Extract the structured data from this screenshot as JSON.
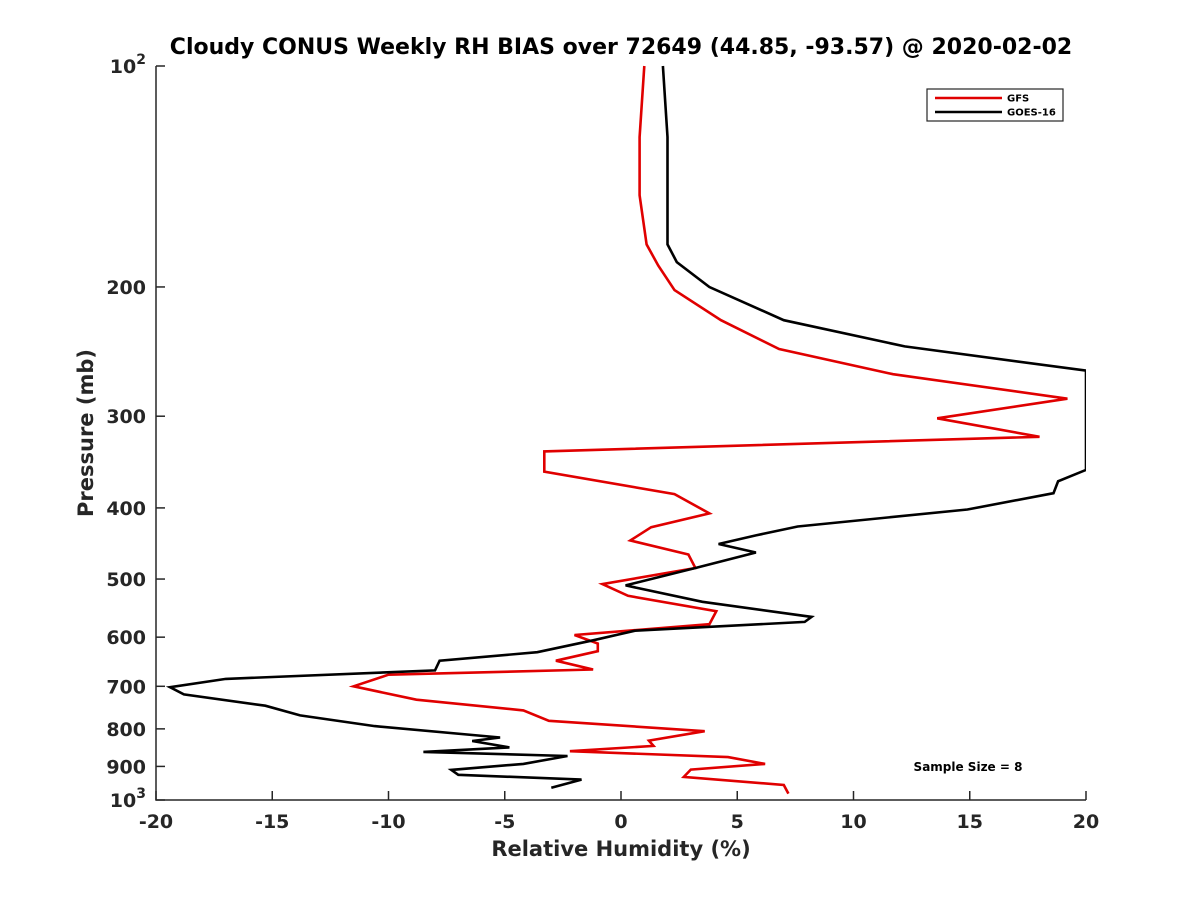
{
  "chart_data": {
    "type": "line",
    "title": "Cloudy CONUS Weekly RH BIAS over 72649 (44.85, -93.57) @ 2020-02-02",
    "xlabel": "Relative Humidity (%)",
    "ylabel": "Pressure (mb)",
    "xlim": [
      -20,
      20
    ],
    "ylim": [
      100,
      1000
    ],
    "y_scale": "log",
    "y_reversed": true,
    "grid": false,
    "legend_position": "top-right",
    "x_ticks": [
      "-20",
      "-15",
      "-10",
      "-5",
      "0",
      "5",
      "10",
      "15",
      "20"
    ],
    "x_tick_values": [
      -20,
      -15,
      -10,
      -5,
      0,
      5,
      10,
      15,
      20
    ],
    "y_ticks": [
      {
        "value": 100,
        "base": "10",
        "exp": "2"
      },
      {
        "value": 200,
        "label": "200"
      },
      {
        "value": 300,
        "label": "300"
      },
      {
        "value": 400,
        "label": "400"
      },
      {
        "value": 500,
        "label": "500"
      },
      {
        "value": 600,
        "label": "600"
      },
      {
        "value": 700,
        "label": "700"
      },
      {
        "value": 800,
        "label": "800"
      },
      {
        "value": 900,
        "label": "900"
      },
      {
        "value": 1000,
        "base": "10",
        "exp": "3"
      }
    ],
    "annotation": "Sample Size = 8",
    "series": [
      {
        "name": "GFS",
        "color": "#e00000",
        "points": [
          [
            1.0,
            100
          ],
          [
            0.8,
            125
          ],
          [
            0.8,
            150
          ],
          [
            1.1,
            175
          ],
          [
            1.6,
            187
          ],
          [
            2.3,
            202
          ],
          [
            4.3,
            222
          ],
          [
            6.8,
            243
          ],
          [
            11.7,
            263
          ],
          [
            19.2,
            284
          ],
          [
            13.6,
            302
          ],
          [
            18.0,
            320
          ],
          [
            -3.3,
            335
          ],
          [
            -3.3,
            357
          ],
          [
            2.3,
            383
          ],
          [
            3.8,
            407
          ],
          [
            1.3,
            425
          ],
          [
            0.4,
            443
          ],
          [
            2.9,
            463
          ],
          [
            3.2,
            483
          ],
          [
            -0.8,
            508
          ],
          [
            0.3,
            527
          ],
          [
            4.1,
            553
          ],
          [
            3.8,
            576
          ],
          [
            -2.0,
            596
          ],
          [
            -1.0,
            612
          ],
          [
            -1.0,
            627
          ],
          [
            -2.8,
            646
          ],
          [
            -1.2,
            664
          ],
          [
            -10.0,
            675
          ],
          [
            -11.5,
            700
          ],
          [
            -8.8,
            730
          ],
          [
            -4.2,
            755
          ],
          [
            -3.1,
            780
          ],
          [
            3.6,
            806
          ],
          [
            1.2,
            830
          ],
          [
            1.4,
            844
          ],
          [
            -2.2,
            858
          ],
          [
            4.6,
            874
          ],
          [
            6.2,
            893
          ],
          [
            3.0,
            909
          ],
          [
            2.7,
            930
          ],
          [
            7.0,
            954
          ],
          [
            7.2,
            980
          ]
        ]
      },
      {
        "name": "GOES-16",
        "color": "#000000",
        "points": [
          [
            1.8,
            100
          ],
          [
            2.0,
            125
          ],
          [
            2.0,
            150
          ],
          [
            2.0,
            175
          ],
          [
            2.4,
            185
          ],
          [
            3.8,
            200
          ],
          [
            7.0,
            222
          ],
          [
            12.2,
            241
          ],
          [
            20.0,
            260
          ],
          [
            20.0,
            355
          ],
          [
            18.8,
            368
          ],
          [
            18.6,
            382
          ],
          [
            14.9,
            402
          ],
          [
            7.6,
            424
          ],
          [
            5.8,
            436
          ],
          [
            4.2,
            448
          ],
          [
            5.8,
            460
          ],
          [
            3.2,
            483
          ],
          [
            0.2,
            510
          ],
          [
            3.5,
            537
          ],
          [
            8.2,
            563
          ],
          [
            7.9,
            572
          ],
          [
            0.6,
            588
          ],
          [
            -1.2,
            606
          ],
          [
            -3.6,
            629
          ],
          [
            -7.8,
            646
          ],
          [
            -8.0,
            666
          ],
          [
            -17.0,
            684
          ],
          [
            -19.4,
            702
          ],
          [
            -18.8,
            718
          ],
          [
            -15.3,
            744
          ],
          [
            -13.8,
            767
          ],
          [
            -10.6,
            793
          ],
          [
            -5.2,
            822
          ],
          [
            -6.4,
            831
          ],
          [
            -4.8,
            848
          ],
          [
            -8.5,
            860
          ],
          [
            -2.3,
            871
          ],
          [
            -4.2,
            893
          ],
          [
            -7.3,
            910
          ],
          [
            -7.0,
            924
          ],
          [
            -1.7,
            938
          ],
          [
            -3.0,
            962
          ]
        ]
      }
    ]
  }
}
